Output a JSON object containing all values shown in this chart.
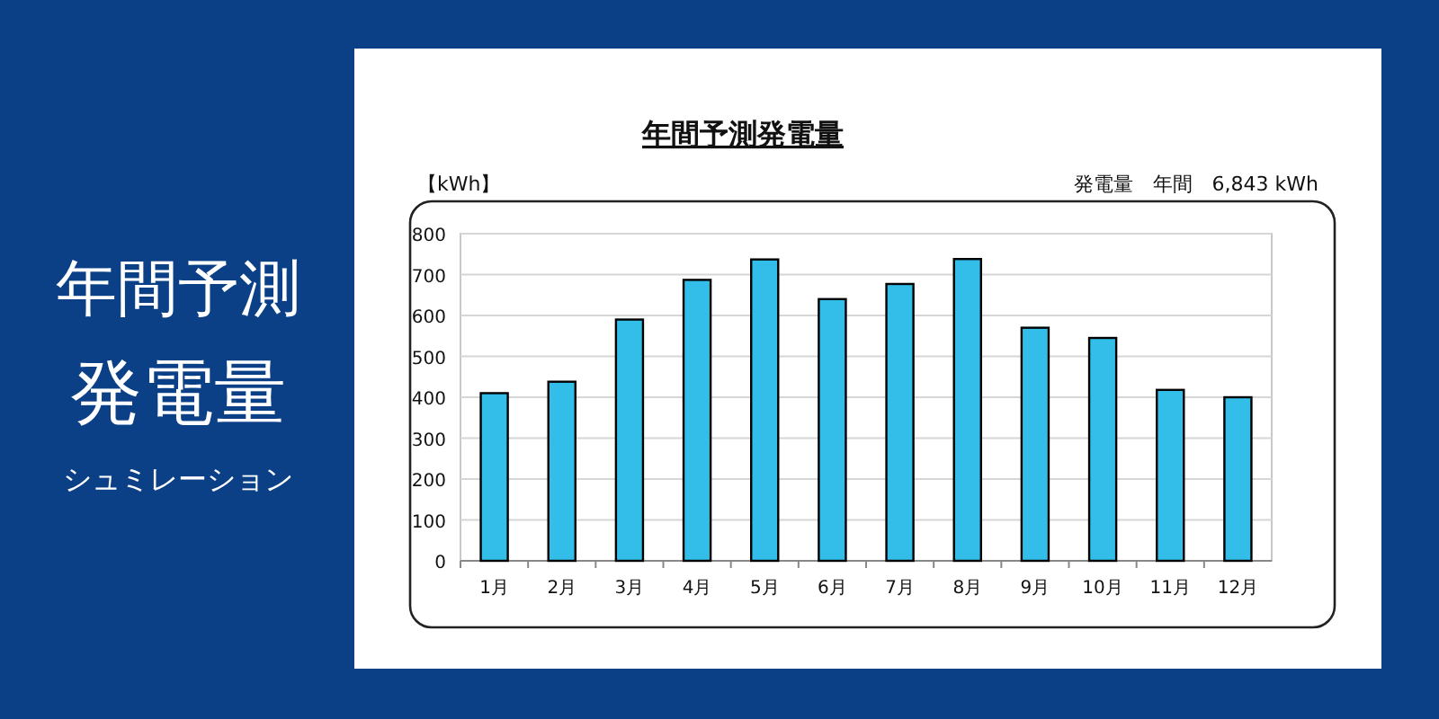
{
  "chart_data": {
    "type": "bar",
    "title": "年間予測発電量",
    "ylabel": "【kWh】",
    "categories": [
      "1月",
      "2月",
      "3月",
      "4月",
      "5月",
      "6月",
      "7月",
      "8月",
      "9月",
      "10月",
      "11月",
      "12月"
    ],
    "values": [
      410,
      438,
      590,
      687,
      737,
      640,
      677,
      738,
      570,
      545,
      418,
      400
    ],
    "color": "#33bde9",
    "ylim": [
      0,
      800
    ],
    "yticks": [
      0,
      100,
      200,
      300,
      400,
      500,
      600,
      700,
      800
    ],
    "grid": "y",
    "annotations": [
      "年間予測",
      "発電量",
      "シュミレーション",
      "発電量　年間　6,843 kWh"
    ]
  }
}
